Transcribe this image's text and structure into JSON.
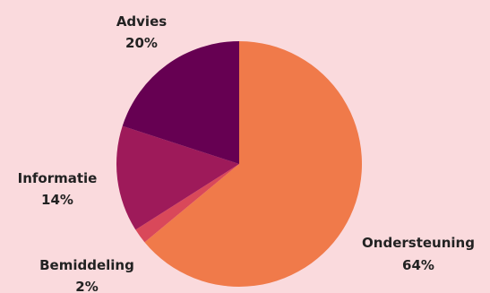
{
  "chart_data": {
    "type": "pie",
    "title": "",
    "start_angle_deg": 0,
    "direction": "clockwise",
    "slices": [
      {
        "label": "Ondersteuning",
        "value": 64,
        "value_label": "64%",
        "color": "#f07a4a"
      },
      {
        "label": "Bemiddeling",
        "value": 2,
        "value_label": "2%",
        "color": "#d9485a"
      },
      {
        "label": "Informatie",
        "value": 14,
        "value_label": "14%",
        "color": "#9e1a5a"
      },
      {
        "label": "Advies",
        "value": 20,
        "value_label": "20%",
        "color": "#660052"
      }
    ]
  }
}
